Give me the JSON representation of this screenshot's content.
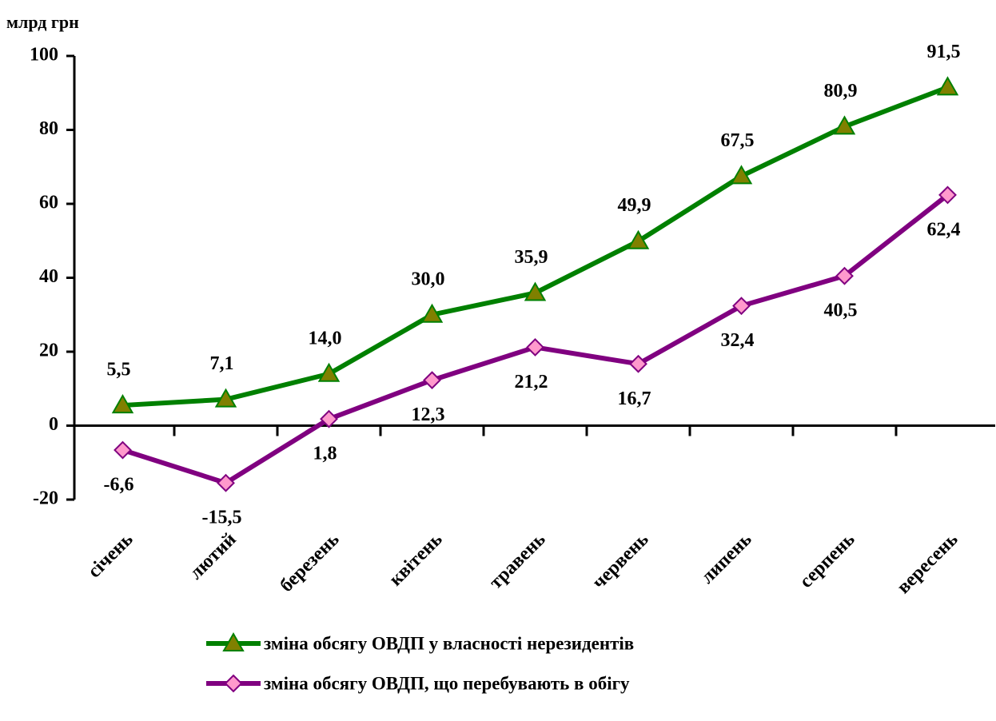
{
  "chart_data": {
    "type": "line",
    "ylabel": "млрд грн",
    "categories": [
      "січень",
      "лютий",
      "березень",
      "квітень",
      "травень",
      "червень",
      "липень",
      "серпень",
      "вересень"
    ],
    "series": [
      {
        "name": "зміна обсягу ОВДП у власності нерезидентів",
        "color": "#008000",
        "marker": "triangle",
        "marker_color": "#808000",
        "label_side": "above",
        "values": [
          5.5,
          7.1,
          14.0,
          30.0,
          35.9,
          49.9,
          67.5,
          80.9,
          91.5
        ],
        "value_labels": [
          "5,5",
          "7,1",
          "14,0",
          "30,0",
          "35,9",
          "49,9",
          "67,5",
          "80,9",
          "91,5"
        ]
      },
      {
        "name": "зміна обсягу ОВДП, що перебувають в обігу",
        "color": "#800080",
        "marker": "diamond",
        "marker_color": "#ff99cc",
        "label_side": "below",
        "values": [
          -6.6,
          -15.5,
          1.8,
          12.3,
          21.2,
          16.7,
          32.4,
          40.5,
          62.4
        ],
        "value_labels": [
          "-6,6",
          "-15,5",
          "1,8",
          "12,3",
          "21,2",
          "16,7",
          "32,4",
          "40,5",
          "62,4"
        ]
      }
    ],
    "ylim": [
      -20,
      100
    ],
    "yticks": [
      -20,
      0,
      20,
      40,
      60,
      80,
      100
    ],
    "grid": false,
    "legend": "bottom"
  }
}
